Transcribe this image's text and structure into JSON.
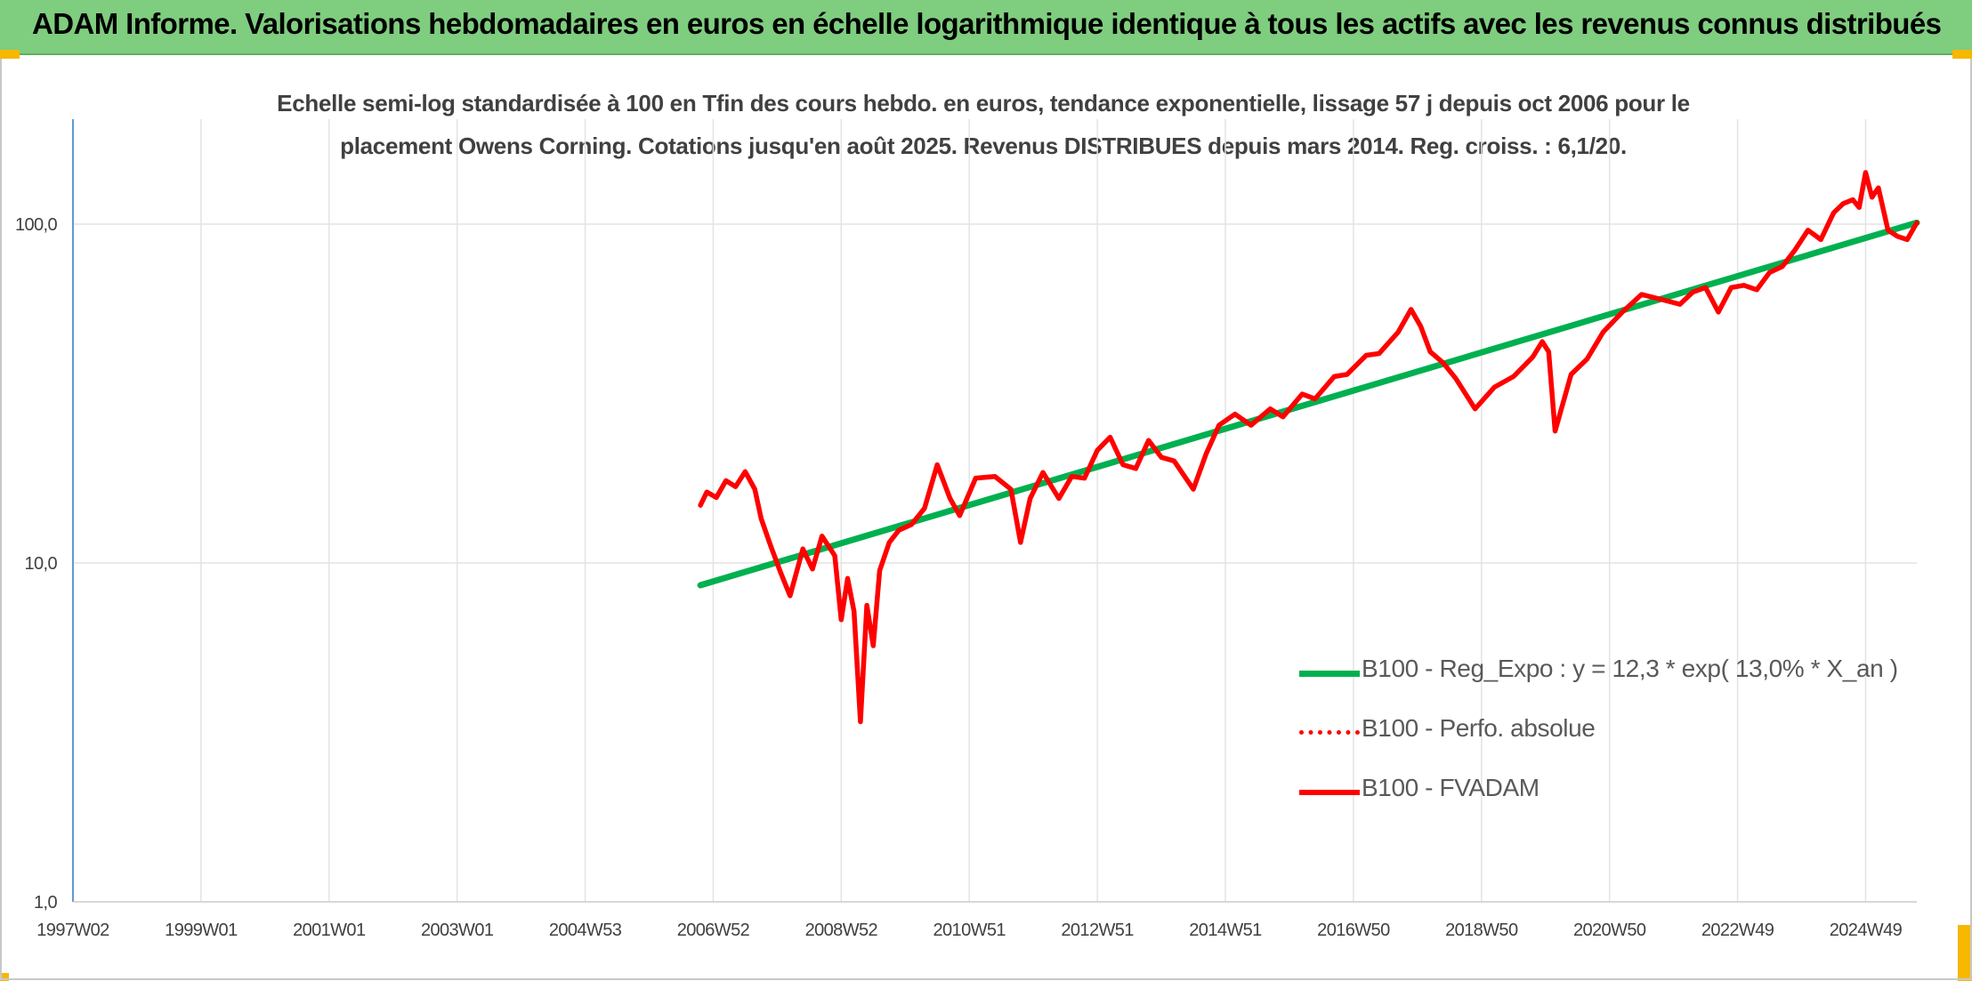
{
  "header": {
    "title": "ADAM Informe. Valorisations hebdomadaires en euros en échelle logarithmique identique à tous les actifs avec les revenus connus distribués"
  },
  "chart_data": {
    "type": "line",
    "subtitle_line1": "Echelle semi-log standardisée à 100 en Tfin des cours hebdo. en euros, tendance exponentielle, lissage 57 j depuis oct 2006 pour le",
    "subtitle_line2": "placement Owens Corning. Cotations jusqu'en août 2025. Revenus DISTRIBUES depuis mars 2014. Reg. croiss. : 6,1/20.",
    "y_scale": "log",
    "ylim": [
      1,
      200
    ],
    "y_ticks": [
      {
        "value": 1,
        "label": "1,0"
      },
      {
        "value": 10,
        "label": "10,0"
      },
      {
        "value": 100,
        "label": "100,0"
      }
    ],
    "xlim": [
      1997.1,
      2025.9
    ],
    "x_ticks": [
      {
        "value": 1997.1,
        "label": "1997W02"
      },
      {
        "value": 1999.1,
        "label": "1999W01"
      },
      {
        "value": 2001.1,
        "label": "2001W01"
      },
      {
        "value": 2003.1,
        "label": "2003W01"
      },
      {
        "value": 2005.1,
        "label": "2004W53"
      },
      {
        "value": 2007.1,
        "label": "2006W52"
      },
      {
        "value": 2009.1,
        "label": "2008W52"
      },
      {
        "value": 2011.1,
        "label": "2010W51"
      },
      {
        "value": 2013.1,
        "label": "2012W51"
      },
      {
        "value": 2015.1,
        "label": "2014W51"
      },
      {
        "value": 2017.1,
        "label": "2016W50"
      },
      {
        "value": 2019.1,
        "label": "2018W50"
      },
      {
        "value": 2021.1,
        "label": "2020W50"
      },
      {
        "value": 2023.1,
        "label": "2022W49"
      },
      {
        "value": 2025.1,
        "label": "2024W49"
      }
    ],
    "grid": true,
    "legend_position": "bottom-right",
    "series": [
      {
        "name": "B100 - Reg_Expo : y = 12,3 * exp( 13,0% *  X_an )",
        "color": "#00b050",
        "style": "solid",
        "x": [
          2006.9,
          2025.9
        ],
        "y": [
          8.6,
          101
        ]
      },
      {
        "name": "B100 - Perfo. absolue",
        "color": "#ff0000",
        "style": "dotted",
        "x": [],
        "y": []
      },
      {
        "name": "B100 - FVADAM",
        "color": "#ff0000",
        "style": "solid",
        "x": [
          2006.9,
          2007.0,
          2007.15,
          2007.3,
          2007.45,
          2007.6,
          2007.75,
          2007.85,
          2008.0,
          2008.15,
          2008.3,
          2008.5,
          2008.65,
          2008.8,
          2009.0,
          2009.1,
          2009.2,
          2009.3,
          2009.4,
          2009.5,
          2009.6,
          2009.7,
          2009.85,
          2010.0,
          2010.2,
          2010.4,
          2010.6,
          2010.8,
          2010.95,
          2011.2,
          2011.5,
          2011.75,
          2011.9,
          2012.05,
          2012.25,
          2012.5,
          2012.7,
          2012.9,
          2013.1,
          2013.3,
          2013.5,
          2013.7,
          2013.9,
          2014.1,
          2014.3,
          2014.6,
          2014.8,
          2015.0,
          2015.25,
          2015.5,
          2015.8,
          2016.0,
          2016.3,
          2016.5,
          2016.8,
          2017.0,
          2017.3,
          2017.5,
          2017.8,
          2018.0,
          2018.15,
          2018.3,
          2018.5,
          2018.7,
          2019.0,
          2019.3,
          2019.6,
          2019.9,
          2020.05,
          2020.15,
          2020.25,
          2020.5,
          2020.75,
          2021.0,
          2021.3,
          2021.6,
          2021.9,
          2022.2,
          2022.4,
          2022.6,
          2022.8,
          2023.0,
          2023.2,
          2023.4,
          2023.6,
          2023.8,
          2024.0,
          2024.2,
          2024.4,
          2024.6,
          2024.75,
          2024.9,
          2025.0,
          2025.1,
          2025.2,
          2025.3,
          2025.45,
          2025.6,
          2025.75,
          2025.9
        ],
        "y": [
          14.8,
          16.2,
          15.6,
          17.5,
          16.8,
          18.6,
          16.5,
          13.5,
          11.2,
          9.4,
          8.0,
          11.0,
          9.6,
          12.0,
          10.5,
          6.8,
          9.0,
          7.2,
          3.4,
          7.5,
          5.7,
          9.5,
          11.5,
          12.5,
          13.0,
          14.5,
          19.5,
          15.5,
          13.8,
          17.8,
          18.0,
          16.5,
          11.5,
          15.5,
          18.5,
          15.5,
          18.0,
          17.8,
          21.5,
          23.5,
          19.5,
          19.0,
          23.0,
          20.5,
          20.0,
          16.5,
          21.0,
          25.5,
          27.5,
          25.5,
          28.5,
          27.0,
          31.5,
          30.5,
          35.5,
          36.0,
          41.0,
          41.5,
          48.0,
          56.0,
          50.0,
          42.0,
          39.0,
          35.0,
          28.5,
          33.0,
          35.5,
          40.5,
          45.0,
          42.0,
          24.5,
          36.0,
          40.0,
          48.0,
          55.0,
          62.0,
          60.0,
          58.0,
          63.0,
          65.0,
          55.0,
          65.0,
          66.0,
          64.0,
          72.0,
          75.0,
          84.0,
          96.0,
          90.0,
          108.0,
          115.0,
          118.0,
          112.0,
          142.0,
          120.0,
          128.0,
          96.0,
          92.0,
          90.0,
          101.0
        ]
      }
    ]
  }
}
